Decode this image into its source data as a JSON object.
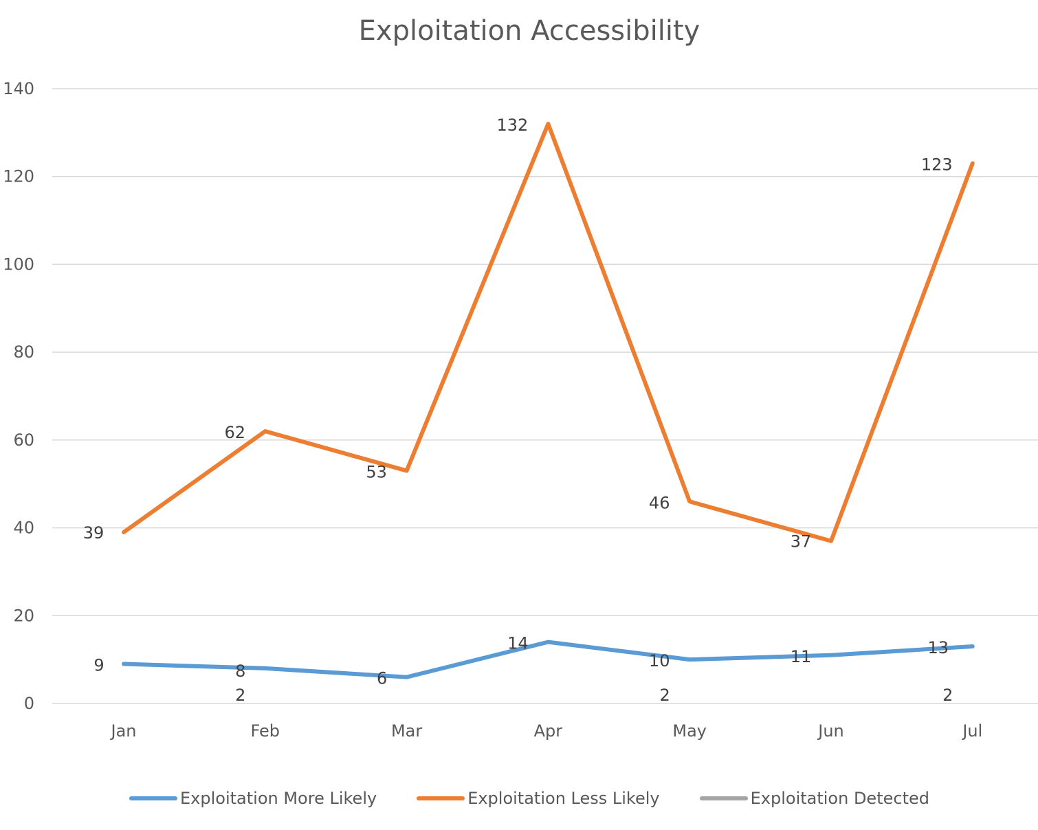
{
  "chart_data": {
    "type": "line",
    "title": "Exploitation Accessibility",
    "categories": [
      "Jan",
      "Feb",
      "Mar",
      "Apr",
      "May",
      "Jun",
      "Jul"
    ],
    "ylim": [
      0,
      140
    ],
    "yticks": [
      0,
      20,
      40,
      60,
      80,
      100,
      120,
      140
    ],
    "grid": true,
    "legend_position": "bottom",
    "xlabel": "",
    "ylabel": "",
    "series": [
      {
        "name": "Exploitation More Likely",
        "color": "#5b9bd5",
        "values": [
          9,
          8,
          6,
          14,
          10,
          11,
          13
        ]
      },
      {
        "name": "Exploitation Less Likely",
        "color": "#ed7d31",
        "values": [
          39,
          62,
          53,
          132,
          46,
          37,
          123
        ]
      },
      {
        "name": "Exploitation Detected",
        "color": "#a5a5a5",
        "values": [
          null,
          2,
          null,
          null,
          2,
          null,
          2
        ]
      }
    ]
  }
}
